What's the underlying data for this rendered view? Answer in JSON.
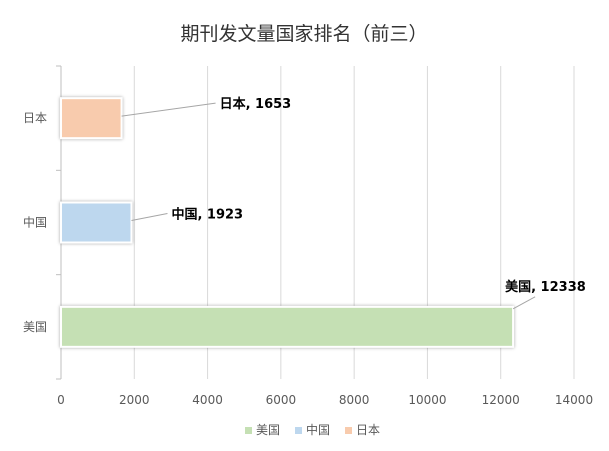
{
  "chart_data": {
    "type": "bar",
    "orientation": "horizontal",
    "title": "期刊发文量国家排名（前三）",
    "categories": [
      "美国",
      "中国",
      "日本"
    ],
    "values": [
      12338,
      1923,
      1653
    ],
    "colors": [
      "#c5e0b4",
      "#bdd7ee",
      "#f8cbad"
    ],
    "data_labels": [
      "美国, 12338",
      "中国, 1923",
      "日本, 1653"
    ],
    "xlim": [
      0,
      14000
    ],
    "x_ticks": [
      0,
      2000,
      4000,
      6000,
      8000,
      10000,
      12000,
      14000
    ],
    "grid": "vertical",
    "legend": {
      "position": "bottom",
      "entries": [
        "美国",
        "中国",
        "日本"
      ]
    }
  }
}
